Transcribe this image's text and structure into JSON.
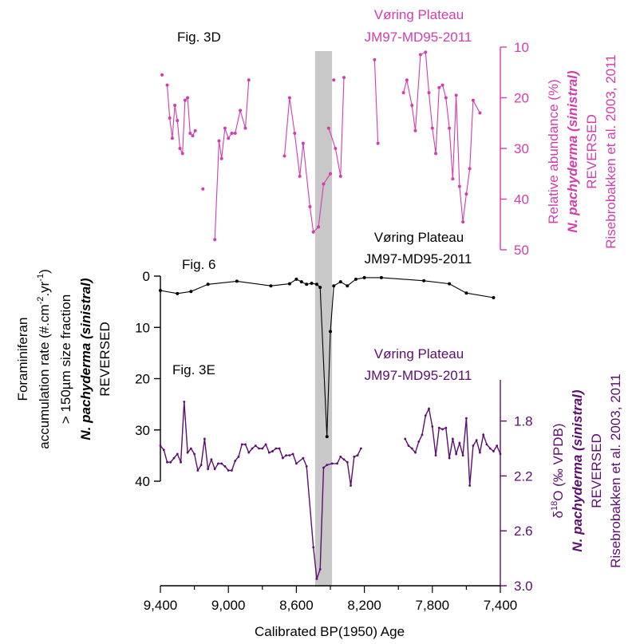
{
  "colors": {
    "pink": "#D23DAF",
    "black": "#000000",
    "purple": "#5C0F6E",
    "band": "#C8C8C8"
  },
  "x_axis": {
    "label": "Calibrated BP(1950) Age",
    "ticks": [
      9400,
      9000,
      8600,
      8200,
      7800,
      7400
    ],
    "tick_labels": [
      "9,400",
      "9,000",
      "8,600",
      "8,200",
      "7,800",
      "7,400"
    ],
    "xlim": [
      9400,
      7400
    ]
  },
  "highlight_band": {
    "x_start": 8490,
    "x_end": 8390
  },
  "chart_data": [
    {
      "type": "line",
      "panel_label": "Fig. 3D",
      "title_lines": [
        "Vøring Plateau",
        "JM97-MD95-2011"
      ],
      "ylabel_lines": [
        "Relative abundance (%)",
        "N. pachyderma (sinistral)",
        "REVERSED",
        "Risebrobakken et al. 2003, 2011"
      ],
      "ylim": [
        10,
        50
      ],
      "y_reversed": true,
      "yticks": [
        10,
        20,
        30,
        40,
        50
      ],
      "ytick_labels": [
        "10",
        "20",
        "30",
        "40",
        "50"
      ],
      "segments": [
        [
          [
            9390,
            15.5
          ]
        ],
        [
          [
            9360,
            17.5
          ],
          [
            9345,
            24
          ],
          [
            9330,
            28
          ],
          [
            9315,
            21.5
          ],
          [
            9300,
            24.5
          ],
          [
            9285,
            30
          ],
          [
            9270,
            31
          ],
          [
            9255,
            20.5
          ],
          [
            9240,
            20
          ],
          [
            9225,
            27
          ],
          [
            9210,
            27.5
          ],
          [
            9195,
            26.5
          ]
        ],
        [
          [
            9150,
            38
          ]
        ],
        [
          [
            9080,
            48
          ],
          [
            9055,
            28.5
          ],
          [
            9040,
            32
          ],
          [
            9020,
            26
          ],
          [
            9000,
            28
          ],
          [
            8980,
            27
          ],
          [
            8960,
            27
          ],
          [
            8930,
            22.5
          ],
          [
            8900,
            26
          ],
          [
            8880,
            16.5
          ]
        ],
        [
          [
            8670,
            31.5
          ],
          [
            8640,
            20
          ],
          [
            8610,
            27
          ],
          [
            8580,
            35.5
          ],
          [
            8560,
            29
          ],
          [
            8520,
            41.5
          ],
          [
            8500,
            46.5
          ],
          [
            8470,
            45.5
          ],
          [
            8440,
            37
          ],
          [
            8400,
            35
          ]
        ],
        [
          [
            8380,
            16.5
          ]
        ],
        [
          [
            8410,
            26
          ],
          [
            8370,
            30
          ],
          [
            8340,
            35.5
          ],
          [
            8320,
            16
          ]
        ],
        [
          [
            8140,
            12.5
          ],
          [
            8120,
            29
          ]
        ],
        [
          [
            7970,
            19
          ],
          [
            7950,
            16.5
          ],
          [
            7920,
            21.5
          ],
          [
            7900,
            26.5
          ],
          [
            7870,
            11.5
          ],
          [
            7840,
            11
          ],
          [
            7820,
            19
          ],
          [
            7800,
            26
          ],
          [
            7780,
            31
          ],
          [
            7760,
            18
          ],
          [
            7740,
            17.5
          ],
          [
            7720,
            20
          ],
          [
            7700,
            26
          ],
          [
            7680,
            36
          ],
          [
            7660,
            19.5
          ],
          [
            7640,
            37.5
          ],
          [
            7620,
            44.5
          ],
          [
            7600,
            39
          ],
          [
            7580,
            34
          ],
          [
            7560,
            20.5
          ],
          [
            7520,
            23
          ]
        ]
      ]
    },
    {
      "type": "line",
      "panel_label": "Fig. 6",
      "title_lines": [
        "Vøring Plateau",
        "JM97-MD95-2011"
      ],
      "ylabel_lines": [
        "Foraminiferan",
        "accumulation rate (#.cm-2.yr-1)",
        "> 150µm size fraction",
        "N. pachyderma (sinistral)",
        "REVERSED"
      ],
      "ylim": [
        0,
        40
      ],
      "y_reversed": true,
      "yticks": [
        0,
        10,
        20,
        30,
        40
      ],
      "ytick_labels": [
        "0",
        "10",
        "20",
        "30",
        "40"
      ],
      "segments": [
        [
          [
            9400,
            2.8
          ],
          [
            9300,
            3.4
          ],
          [
            9220,
            3.0
          ],
          [
            9120,
            1.6
          ],
          [
            8950,
            1.0
          ],
          [
            8750,
            1.9
          ],
          [
            8640,
            1.5
          ],
          [
            8600,
            0.6
          ],
          [
            8570,
            1.1
          ],
          [
            8540,
            1.6
          ],
          [
            8510,
            1.4
          ],
          [
            8480,
            1.6
          ],
          [
            8460,
            2.2
          ],
          [
            8420,
            31.3
          ],
          [
            8400,
            10.8
          ],
          [
            8380,
            1.9
          ],
          [
            8340,
            1.1
          ],
          [
            8300,
            1.9
          ],
          [
            8250,
            0.6
          ],
          [
            8200,
            0.3
          ],
          [
            8100,
            0.3
          ],
          [
            7850,
            0.9
          ],
          [
            7700,
            1.5
          ],
          [
            7600,
            3.3
          ],
          [
            7440,
            4.2
          ]
        ]
      ]
    },
    {
      "type": "line",
      "panel_label": "Fig. 3E",
      "title_lines": [
        "Vøring Plateau",
        "JM97-MD95-2011"
      ],
      "ylabel_lines": [
        "δ18O (‰ VPDB)",
        "N. pachyderma (sinistral)",
        "REVERSED",
        "Risebrobakken et al. 2003, 2011"
      ],
      "ylim": [
        1.5,
        3.0
      ],
      "y_reversed": true,
      "yticks": [
        1.8,
        2.2,
        2.6,
        3.0
      ],
      "ytick_labels": [
        "1.8",
        "2.2",
        "2.6",
        "3.0"
      ],
      "segments": [
        [
          [
            9400,
            1.98
          ],
          [
            9380,
            2.01
          ],
          [
            9360,
            2.1
          ],
          [
            9340,
            2.1
          ],
          [
            9320,
            2.07
          ],
          [
            9300,
            2.04
          ],
          [
            9280,
            2.1
          ],
          [
            9260,
            1.66
          ],
          [
            9240,
            2.03
          ],
          [
            9220,
            2.0
          ],
          [
            9200,
            2.04
          ],
          [
            9180,
            2.16
          ],
          [
            9160,
            2.12
          ],
          [
            9140,
            1.93
          ],
          [
            9120,
            2.15
          ],
          [
            9100,
            2.08
          ],
          [
            9080,
            2.15
          ],
          [
            9060,
            2.11
          ],
          [
            9040,
            2.11
          ],
          [
            9020,
            2.13
          ],
          [
            9000,
            2.16
          ],
          [
            8980,
            2.16
          ],
          [
            8960,
            2.09
          ],
          [
            8940,
            2.06
          ],
          [
            8920,
            1.97
          ],
          [
            8900,
            1.97
          ],
          [
            8880,
            2.03
          ],
          [
            8860,
            2.0
          ],
          [
            8840,
            1.98
          ],
          [
            8820,
            2.0
          ],
          [
            8800,
            2.0
          ],
          [
            8780,
            1.97
          ],
          [
            8760,
            2.03
          ],
          [
            8740,
            2.02
          ],
          [
            8720,
            2.0
          ],
          [
            8700,
            2.0
          ],
          [
            8680,
            2.07
          ],
          [
            8660,
            2.05
          ],
          [
            8640,
            2.05
          ],
          [
            8620,
            2.04
          ],
          [
            8600,
            2.11
          ],
          [
            8560,
            2.07
          ],
          [
            8540,
            2.13
          ],
          [
            8500,
            2.72
          ],
          [
            8480,
            2.95
          ],
          [
            8460,
            2.88
          ],
          [
            8440,
            2.14
          ],
          [
            8420,
            2.12
          ],
          [
            8390,
            2.11
          ],
          [
            8360,
            2.11
          ],
          [
            8340,
            2.06
          ],
          [
            8320,
            2.08
          ],
          [
            8300,
            2.1
          ],
          [
            8280,
            2.27
          ],
          [
            8260,
            2.06
          ],
          [
            8240,
            2.05
          ],
          [
            8220,
            2.0
          ]
        ],
        [
          [
            7960,
            1.93
          ],
          [
            7940,
            1.98
          ],
          [
            7920,
            2.0
          ],
          [
            7900,
            2.03
          ],
          [
            7880,
            1.95
          ],
          [
            7860,
            1.9
          ],
          [
            7840,
            1.76
          ],
          [
            7820,
            1.71
          ],
          [
            7800,
            1.84
          ],
          [
            7780,
            2.05
          ],
          [
            7760,
            1.85
          ],
          [
            7740,
            1.86
          ],
          [
            7720,
            1.85
          ],
          [
            7700,
            2.07
          ],
          [
            7680,
            1.93
          ],
          [
            7660,
            2.04
          ],
          [
            7640,
            1.96
          ],
          [
            7620,
            2.05
          ],
          [
            7600,
            1.78
          ],
          [
            7580,
            2.27
          ],
          [
            7560,
            1.98
          ],
          [
            7540,
            1.94
          ],
          [
            7520,
            2.03
          ],
          [
            7500,
            1.9
          ],
          [
            7480,
            1.97
          ],
          [
            7460,
            2.0
          ],
          [
            7440,
            2.02
          ],
          [
            7420,
            1.98
          ],
          [
            7400,
            2.04
          ]
        ]
      ]
    }
  ]
}
